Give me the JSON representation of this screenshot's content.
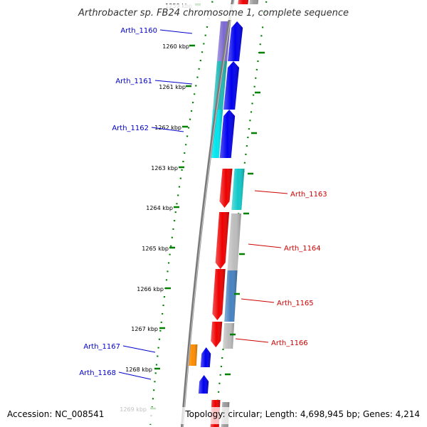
{
  "title": "Arthrobacter sp. FB24 chromosome 1, complete sequence",
  "footer": {
    "accession": "Accession: NC_008541",
    "summary": "Topology: circular; Length: 4,698,945 bp; Genes: 4,214"
  },
  "scale": {
    "unit": "kbp",
    "ticks": [
      "1259 kbp",
      "1260 kbp",
      "1261 kbp",
      "1262 kbp",
      "1263 kbp",
      "1264 kbp",
      "1265 kbp",
      "1266 kbp",
      "1267 kbp",
      "1268 kbp",
      "1269 kbp"
    ]
  },
  "colors": {
    "forward_label": "#0000cc",
    "reverse_label": "#cc0000",
    "backbone": "#808080",
    "ticks": "#008000"
  },
  "genes": {
    "forward": [
      {
        "label": "Arth_1160"
      },
      {
        "label": "Arth_1161"
      },
      {
        "label": "Arth_1162"
      },
      {
        "label": "Arth_1167"
      },
      {
        "label": "Arth_1168"
      }
    ],
    "reverse": [
      {
        "label": "Arth_1163"
      },
      {
        "label": "Arth_1164"
      },
      {
        "label": "Arth_1165"
      },
      {
        "label": "Arth_1166"
      }
    ]
  }
}
